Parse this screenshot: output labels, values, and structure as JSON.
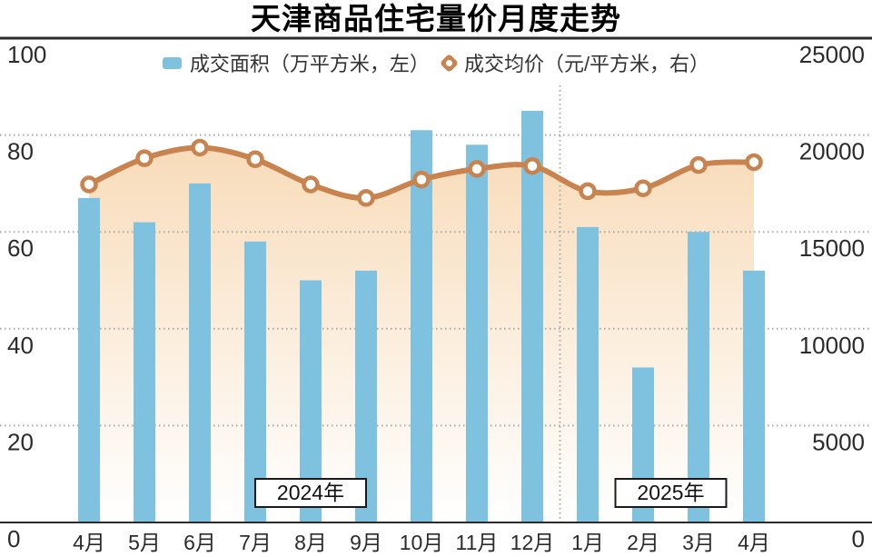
{
  "chart_data": {
    "type": "combo-bar-line",
    "title": "天津商品住宅量价月度走势",
    "categories": [
      "4月",
      "5月",
      "6月",
      "7月",
      "8月",
      "9月",
      "10月",
      "11月",
      "12月",
      "1月",
      "2月",
      "3月",
      "4月"
    ],
    "series": [
      {
        "name": "成交面积（万平方米，左）",
        "type": "bar",
        "axis": "left",
        "values": [
          67,
          62,
          70,
          58,
          50,
          52,
          81,
          78,
          85,
          61,
          32,
          60,
          52
        ]
      },
      {
        "name": "成交均价（元/平方米，右）",
        "type": "line",
        "axis": "right",
        "values": [
          17450,
          18800,
          19350,
          18750,
          17450,
          16750,
          17700,
          18250,
          18400,
          17100,
          17250,
          18450,
          18600
        ]
      }
    ],
    "left_axis": {
      "ticks": [
        "0",
        "20",
        "40",
        "60",
        "80",
        "100"
      ],
      "range": [
        0,
        100
      ]
    },
    "right_axis": {
      "ticks": [
        "0",
        "5000",
        "10000",
        "15000",
        "20000",
        "25000"
      ],
      "range": [
        0,
        25000
      ]
    },
    "year_groups": [
      {
        "label": "2024年",
        "center_index": 4
      },
      {
        "label": "2025年",
        "center_index": 10.5
      }
    ],
    "separator_after_index": 8,
    "grid": true,
    "legend_position": "top"
  },
  "colors": {
    "bar": "#7fc2df",
    "line": "#c8834e",
    "area_top": "#f8dcba",
    "area_bottom": "#ffffff",
    "grid": "#a8a8a8",
    "axis": "#2b2b2b",
    "text": "#2b2b2b",
    "year_box_border": "#1a1a1a"
  }
}
